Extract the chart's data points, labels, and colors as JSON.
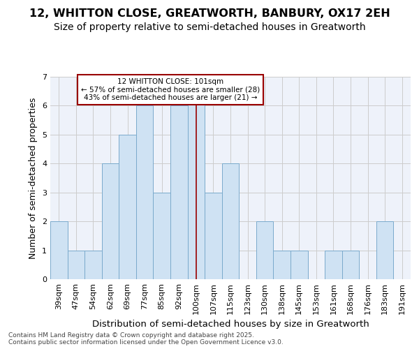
{
  "title1": "12, WHITTON CLOSE, GREATWORTH, BANBURY, OX17 2EH",
  "title2": "Size of property relative to semi-detached houses in Greatworth",
  "xlabel": "Distribution of semi-detached houses by size in Greatworth",
  "ylabel": "Number of semi-detached properties",
  "categories": [
    "39sqm",
    "47sqm",
    "54sqm",
    "62sqm",
    "69sqm",
    "77sqm",
    "85sqm",
    "92sqm",
    "100sqm",
    "107sqm",
    "115sqm",
    "123sqm",
    "130sqm",
    "138sqm",
    "145sqm",
    "153sqm",
    "161sqm",
    "168sqm",
    "176sqm",
    "183sqm",
    "191sqm"
  ],
  "values": [
    2,
    1,
    1,
    4,
    5,
    6,
    3,
    6,
    7,
    3,
    4,
    0,
    2,
    1,
    1,
    0,
    1,
    1,
    0,
    2,
    0
  ],
  "highlight_index": 8,
  "highlight_label": "12 WHITTON CLOSE: 101sqm",
  "pct_smaller": "57% of semi-detached houses are smaller (28)",
  "pct_larger": "43% of semi-detached houses are larger (21)",
  "bar_color": "#cfe2f3",
  "bar_edge_color": "#7aaacc",
  "highlight_line_color": "#990000",
  "annotation_box_edge": "#990000",
  "background_color": "#eef2fa",
  "grid_color": "#cccccc",
  "ylim": [
    0,
    7
  ],
  "yticks": [
    0,
    1,
    2,
    3,
    4,
    5,
    6,
    7
  ],
  "footer": "Contains HM Land Registry data © Crown copyright and database right 2025.\nContains public sector information licensed under the Open Government Licence v3.0.",
  "title1_fontsize": 11.5,
  "title2_fontsize": 10,
  "xlabel_fontsize": 9.5,
  "ylabel_fontsize": 9,
  "tick_fontsize": 8,
  "footer_fontsize": 6.5
}
